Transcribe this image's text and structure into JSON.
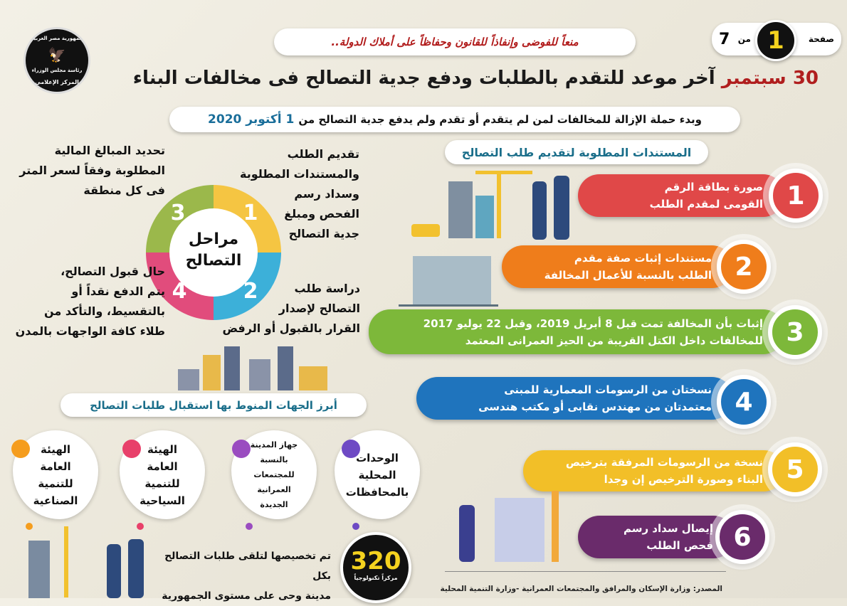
{
  "logo": {
    "text_top": "جمهورية مصر العربية",
    "text_mid": "رئاسة مجلس الوزراء",
    "text_bottom": "المركز الإعلامي"
  },
  "page": {
    "label": "صفحة",
    "current": "1",
    "of": "من",
    "total": "7"
  },
  "slogan": "منعاً للفوضى وإنفاذاً للقانون وحفاظاً على أملاك الدولة..",
  "title": {
    "highlight": "30 سبتمبر",
    "rest": "آخر موعد للتقدم بالطلبات ودفع جدية التصالح فى مخالفات البناء"
  },
  "subtitle": {
    "text": "وبدء حملة الإزالة للمخالفات لمن لم يتقدم أو تقدم ولم يدفع جدية التصالح من",
    "date": "1 أكتوبر 2020"
  },
  "documents": {
    "header": "المستندات المطلوبة لتقديم طلب التصالح",
    "items": [
      {
        "number": "1",
        "lines": [
          "صورة بطاقة الرقم",
          "القومى لمقدم الطلب"
        ],
        "color": "#e04848"
      },
      {
        "number": "2",
        "lines": [
          "مستندات إثبات صفة مقدم",
          "الطلب بالنسبة للأعمال المخالفة"
        ],
        "color": "#ef7d1b"
      },
      {
        "number": "3",
        "lines": [
          "إثبات بأن المخالفة تمت قبل 8 أبريل 2019، وقبل 22 يوليو 2017",
          "للمخالفات داخل الكتل القريبة من الحيز العمرانى المعتمد"
        ],
        "color": "#7db83a"
      },
      {
        "number": "4",
        "lines": [
          "نسختان من الرسومات المعمارية للمبنى",
          "معتمدتان من مهندس نقابى أو مكتب هندسى"
        ],
        "color": "#1f74bd"
      },
      {
        "number": "5",
        "lines": [
          "نسخة من الرسومات المرفقة بترخيص",
          "البناء وصورة الترخيص إن وجدا"
        ],
        "color": "#f2bf28"
      },
      {
        "number": "6",
        "lines": [
          "إيصال سداد رسم",
          "فحص الطلب"
        ],
        "color": "#6a2b6b"
      }
    ]
  },
  "stages": {
    "center": [
      "مراحل",
      "التصالح"
    ],
    "items": [
      {
        "number": "1",
        "lines": [
          "تقديم الطلب",
          "والمستندات المطلوبة",
          "وسداد رسم",
          "الفحص ومبلغ",
          "جدية التصالح"
        ],
        "color": "#f5c542"
      },
      {
        "number": "2",
        "lines": [
          "دراسة طلب",
          "التصالح لإصدار",
          "القرار بالقبول أو الرفض"
        ],
        "color": "#3cb0d9"
      },
      {
        "number": "3",
        "lines": [
          "تحديد المبالغ المالية",
          "المطلوبة وفقاً لسعر المتر",
          "فى كل منطقة"
        ],
        "color": "#9bb84b"
      },
      {
        "number": "4",
        "lines": [
          "حال قبول التصالح،",
          "يتم الدفع نقداً أو",
          "بالتقسيط، والتأكد من",
          "طلاء كافة الواجهات بالمدن"
        ],
        "color": "#e14c7c"
      }
    ]
  },
  "entities": {
    "header": "أبرز الجهات المنوط بها استقبال طلبات التصالح",
    "items": [
      {
        "lines": [
          "الوحدات",
          "المحلية",
          "بالمحافظات"
        ],
        "color": "#6e4ac4"
      },
      {
        "lines": [
          "جهاز المدينة",
          "بالنسبة",
          "للمجتمعات",
          "العمرانية",
          "الجديدة"
        ],
        "color": "#9a4cc0"
      },
      {
        "lines": [
          "الهيئة",
          "العامة",
          "للتنمية",
          "السياحية"
        ],
        "color": "#e8406a"
      },
      {
        "lines": [
          "الهيئة",
          "العامة",
          "للتنمية",
          "الصناعية"
        ],
        "color": "#f59d1e"
      }
    ]
  },
  "centers": {
    "count": "320",
    "unit": "مركزاً تكنولوجياً",
    "lines": [
      "تم تخصيصها لتلقى طلبات التصالح بكل",
      "مدينة وحى على مستوى الجمهورية"
    ]
  },
  "source": "المصدر: وزارة الإسكان والمرافق والمجتمعات العمرانية -وزارة التنمية المحلية"
}
